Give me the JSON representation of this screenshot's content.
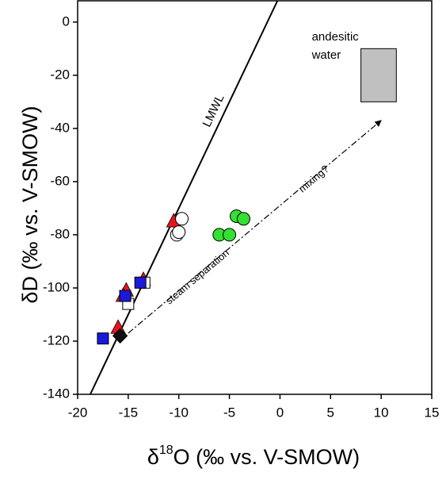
{
  "chart_data": {
    "type": "scatter",
    "x_label": {
      "prefix": "δ",
      "sup": "18",
      "rest": "O (‰ vs. V-SMOW)"
    },
    "y_label": "δD (‰ vs. V-SMOW)",
    "xlim": [
      -20,
      15
    ],
    "ylim": [
      -140,
      8
    ],
    "xticks": [
      -20,
      -15,
      -10,
      -5,
      0,
      5,
      10,
      15
    ],
    "yticks": [
      -140,
      -120,
      -100,
      -80,
      -60,
      -40,
      -20,
      0
    ],
    "series": [
      {
        "marker": "triangle",
        "color": "#e8141c",
        "x": [
          -10.5,
          -13.5,
          -15.2,
          -15.5,
          -16.0
        ],
        "values": [
          -75,
          -97,
          -101,
          -103,
          -115
        ]
      },
      {
        "marker": "circle",
        "color": "#ffffff",
        "x": [
          -9.7,
          -10.2,
          -10.0
        ],
        "values": [
          -74,
          -80,
          -79
        ]
      },
      {
        "marker": "square",
        "color": "#ffffff",
        "x": [
          -15.0,
          -13.4
        ],
        "values": [
          -106,
          -98
        ]
      },
      {
        "marker": "square",
        "color": "#1a1adc",
        "x": [
          -17.5,
          -13.8,
          -15.3
        ],
        "values": [
          -119,
          -98,
          -103
        ]
      },
      {
        "marker": "diamond",
        "color": "#111111",
        "x": [
          -15.8
        ],
        "values": [
          -118
        ]
      },
      {
        "marker": "circle",
        "color": "#33e033",
        "x": [
          -4.3,
          -3.6,
          -6.0,
          -5.0
        ],
        "values": [
          -73,
          -74,
          -80,
          -80
        ]
      }
    ],
    "lmwl": {
      "label": "LMWL",
      "x": [
        -18.75,
        -0.25
      ],
      "values": [
        -140,
        8
      ]
    },
    "trend": {
      "label_low": "steam separation",
      "label_high": "mixing?",
      "x": [
        -15,
        10
      ],
      "values": [
        -117,
        -37
      ]
    },
    "box": {
      "label_line1": "andesitic",
      "label_line2": "water",
      "x": [
        8,
        11.5
      ],
      "values": [
        -30,
        -10
      ],
      "color": "#c0c0c0"
    }
  }
}
